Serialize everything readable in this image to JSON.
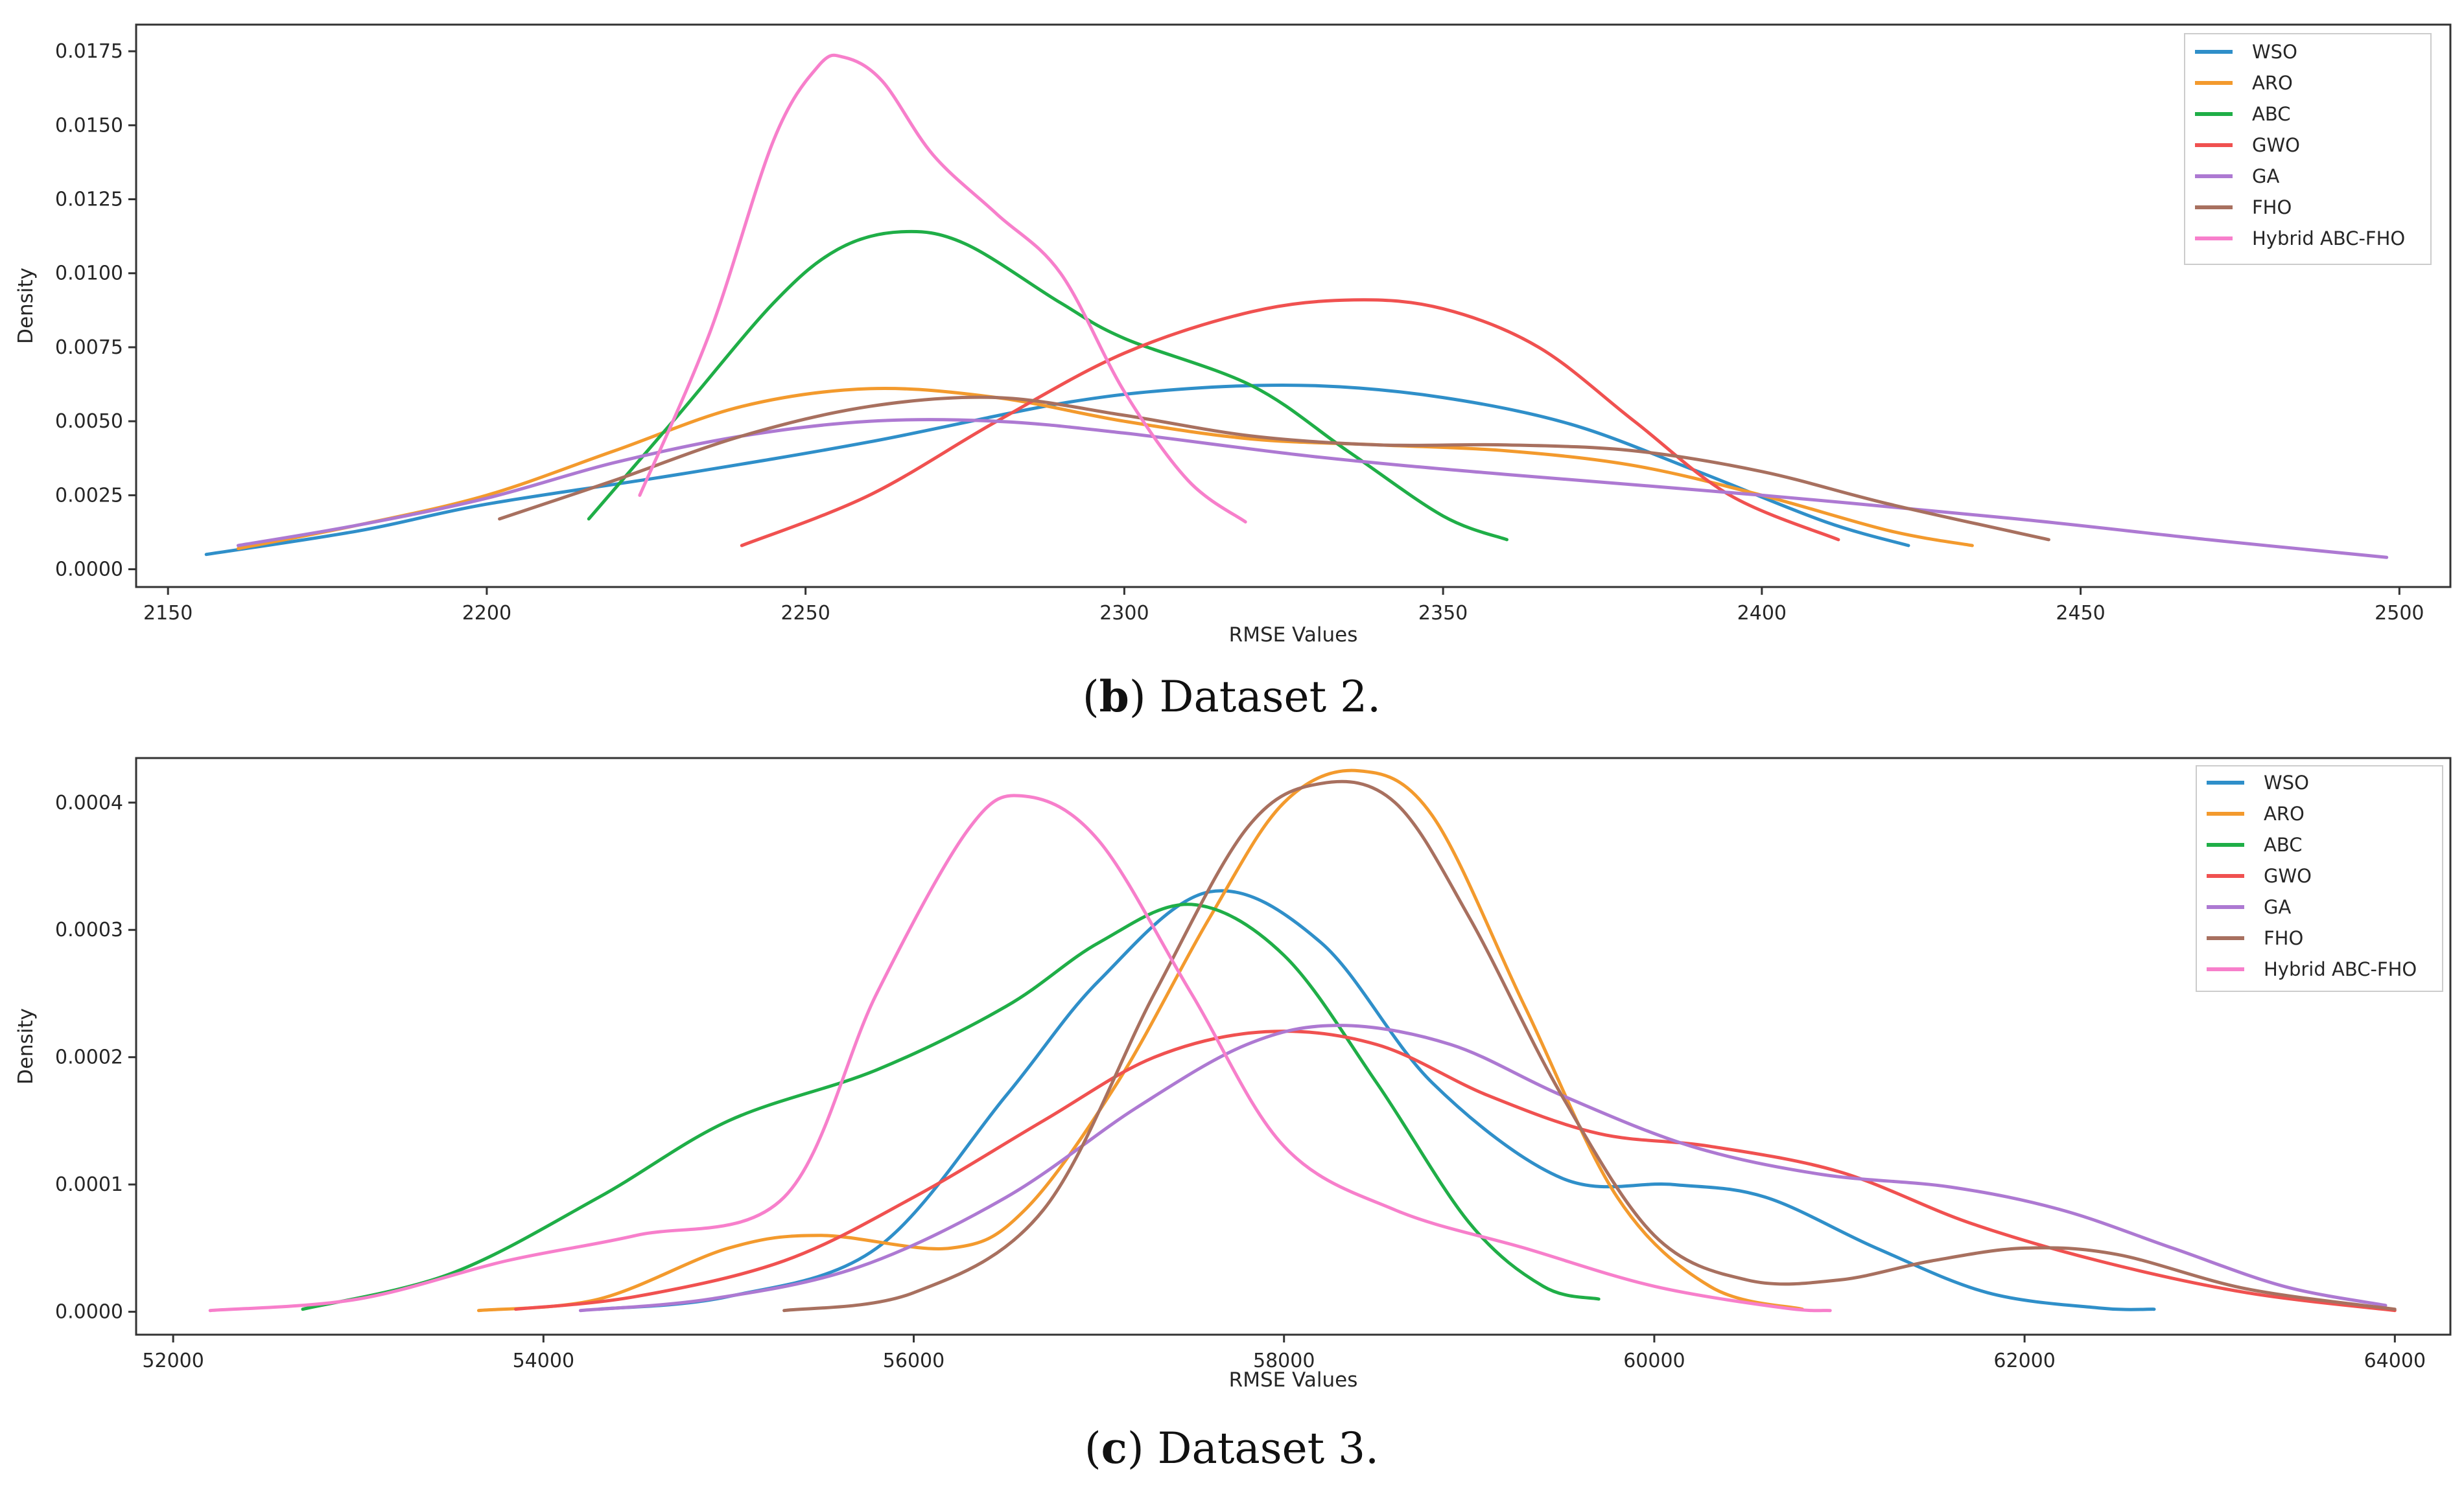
{
  "colors": {
    "WSO": "#2f8fc9",
    "ARO": "#f39a2d",
    "ABC": "#1fae47",
    "GWO": "#f05150",
    "GA": "#ad79d2",
    "FHO": "#a8705f",
    "Hybrid ABC-FHO": "#f77fcb"
  },
  "chart_data": [
    {
      "type": "line",
      "title": "",
      "caption": {
        "letter": "b",
        "text": "Dataset 2."
      },
      "xlabel": "RMSE Values",
      "ylabel": "Density",
      "xlim": [
        2145,
        2508
      ],
      "ylim": [
        -0.0006,
        0.0184
      ],
      "xticks": [
        "2150",
        "2200",
        "2250",
        "2300",
        "2350",
        "2400",
        "2450",
        "2500"
      ],
      "yticks": [
        "0.0000",
        "0.0025",
        "0.0050",
        "0.0075",
        "0.0100",
        "0.0125",
        "0.0150",
        "0.0175"
      ],
      "legend": {
        "position": "top-right",
        "entries": [
          "WSO",
          "ARO",
          "ABC",
          "GWO",
          "GA",
          "FHO",
          "Hybrid ABC-FHO"
        ]
      },
      "series": [
        {
          "name": "WSO",
          "x": [
            2156,
            2180,
            2200,
            2230,
            2260,
            2290,
            2310,
            2330,
            2350,
            2370,
            2390,
            2410,
            2423
          ],
          "y": [
            0.0005,
            0.0013,
            0.0022,
            0.0032,
            0.0043,
            0.0056,
            0.0061,
            0.0062,
            0.0058,
            0.0049,
            0.0033,
            0.0016,
            0.0008
          ]
        },
        {
          "name": "ARO",
          "x": [
            2161,
            2180,
            2200,
            2220,
            2240,
            2260,
            2280,
            2300,
            2320,
            2340,
            2360,
            2380,
            2400,
            2420,
            2433
          ],
          "y": [
            0.0007,
            0.0015,
            0.0025,
            0.004,
            0.0055,
            0.0061,
            0.0058,
            0.005,
            0.0044,
            0.0042,
            0.004,
            0.0035,
            0.0025,
            0.0013,
            0.0008
          ]
        },
        {
          "name": "ABC",
          "x": [
            2216,
            2230,
            2245,
            2255,
            2265,
            2275,
            2290,
            2300,
            2320,
            2335,
            2350,
            2360
          ],
          "y": [
            0.0017,
            0.0052,
            0.009,
            0.0108,
            0.0114,
            0.011,
            0.009,
            0.0078,
            0.0062,
            0.004,
            0.0018,
            0.001
          ]
        },
        {
          "name": "GWO",
          "x": [
            2240,
            2260,
            2280,
            2300,
            2320,
            2336,
            2350,
            2365,
            2380,
            2395,
            2412
          ],
          "y": [
            0.0008,
            0.0025,
            0.005,
            0.0073,
            0.0087,
            0.0091,
            0.0088,
            0.0075,
            0.005,
            0.0025,
            0.001
          ]
        },
        {
          "name": "GA",
          "x": [
            2161,
            2180,
            2200,
            2220,
            2240,
            2260,
            2280,
            2300,
            2330,
            2360,
            2400,
            2440,
            2470,
            2498
          ],
          "y": [
            0.0008,
            0.0015,
            0.0024,
            0.0036,
            0.0045,
            0.005,
            0.005,
            0.0046,
            0.0038,
            0.0032,
            0.0025,
            0.0017,
            0.001,
            0.0004
          ]
        },
        {
          "name": "FHO",
          "x": [
            2202,
            2220,
            2240,
            2260,
            2280,
            2300,
            2320,
            2340,
            2360,
            2380,
            2400,
            2420,
            2445
          ],
          "y": [
            0.0017,
            0.003,
            0.0045,
            0.0055,
            0.0058,
            0.0052,
            0.0045,
            0.0042,
            0.0042,
            0.004,
            0.0033,
            0.0022,
            0.001
          ]
        },
        {
          "name": "Hybrid ABC-FHO",
          "x": [
            2224,
            2235,
            2245,
            2252,
            2256,
            2262,
            2270,
            2280,
            2290,
            2300,
            2310,
            2319
          ],
          "y": [
            0.0025,
            0.008,
            0.0145,
            0.017,
            0.0173,
            0.0165,
            0.014,
            0.012,
            0.01,
            0.006,
            0.003,
            0.0016
          ]
        }
      ]
    },
    {
      "type": "line",
      "title": "",
      "caption": {
        "letter": "c",
        "text": "Dataset 3."
      },
      "xlabel": "RMSE Values",
      "ylabel": "Density",
      "xlim": [
        51800,
        64300
      ],
      "ylim": [
        -1.8e-05,
        0.000435
      ],
      "xticks": [
        "52000",
        "54000",
        "56000",
        "58000",
        "60000",
        "62000",
        "64000"
      ],
      "yticks": [
        "0.0000",
        "0.0001",
        "0.0002",
        "0.0003",
        "0.0004"
      ],
      "legend": {
        "position": "top-right",
        "entries": [
          "WSO",
          "ARO",
          "ABC",
          "GWO",
          "GA",
          "FHO",
          "Hybrid ABC-FHO"
        ]
      },
      "series": [
        {
          "name": "WSO",
          "x": [
            54300,
            55000,
            55800,
            56500,
            57000,
            57600,
            58200,
            58800,
            59500,
            60100,
            60600,
            61200,
            61800,
            62400,
            62700
          ],
          "y": [
            2e-06,
            1.2e-05,
            5e-05,
            0.00017,
            0.00026,
            0.00033,
            0.00029,
            0.00018,
            0.000105,
            0.0001,
            9e-05,
            5e-05,
            1.5e-05,
            3e-06,
            2e-06
          ]
        },
        {
          "name": "ARO",
          "x": [
            53650,
            54300,
            55000,
            55500,
            56200,
            56600,
            57100,
            57600,
            58000,
            58400,
            58800,
            59300,
            59800,
            60300,
            60800
          ],
          "y": [
            1e-06,
            1e-05,
            5e-05,
            6e-05,
            5e-05,
            8e-05,
            0.00018,
            0.00031,
            0.0004,
            0.000425,
            0.00039,
            0.00024,
            9e-05,
            2e-05,
            2e-06
          ]
        },
        {
          "name": "ABC",
          "x": [
            52700,
            53500,
            54300,
            55000,
            55800,
            56500,
            57000,
            57500,
            58000,
            58500,
            59000,
            59400,
            59700
          ],
          "y": [
            2e-06,
            3e-05,
            9e-05,
            0.00015,
            0.00019,
            0.00024,
            0.00029,
            0.00032,
            0.00028,
            0.00018,
            7e-05,
            2e-05,
            1e-05
          ]
        },
        {
          "name": "GWO",
          "x": [
            53850,
            54500,
            55300,
            56000,
            56700,
            57300,
            57900,
            58500,
            59100,
            59700,
            60300,
            61000,
            61700,
            62400,
            63200,
            64000
          ],
          "y": [
            2e-06,
            1.2e-05,
            4e-05,
            9e-05,
            0.00015,
            0.0002,
            0.00022,
            0.00021,
            0.00017,
            0.00014,
            0.00013,
            0.00011,
            7e-05,
            4e-05,
            1.5e-05,
            1e-06
          ]
        },
        {
          "name": "GA",
          "x": [
            54200,
            54900,
            55700,
            56500,
            57200,
            57800,
            58300,
            58900,
            59500,
            60200,
            60900,
            61600,
            62200,
            62800,
            63400,
            63950
          ],
          "y": [
            1e-06,
            1e-05,
            3.5e-05,
            9e-05,
            0.00016,
            0.00021,
            0.000225,
            0.00021,
            0.00017,
            0.00013,
            0.000108,
            9.8e-05,
            8e-05,
            5e-05,
            2e-05,
            5e-06
          ]
        },
        {
          "name": "FHO",
          "x": [
            55300,
            56000,
            56700,
            57300,
            57800,
            58200,
            58600,
            59000,
            59500,
            60000,
            60500,
            61000,
            61500,
            62000,
            62500,
            63200,
            64000
          ],
          "y": [
            1e-06,
            1.5e-05,
            8e-05,
            0.00025,
            0.00038,
            0.000415,
            0.0004,
            0.00031,
            0.00017,
            6e-05,
            2.5e-05,
            2.5e-05,
            4e-05,
            5e-05,
            4.5e-05,
            1.8e-05,
            2e-06
          ]
        },
        {
          "name": "Hybrid ABC-FHO",
          "x": [
            52200,
            53000,
            53800,
            54500,
            55300,
            55800,
            56300,
            56600,
            57000,
            57500,
            58000,
            58600,
            59300,
            60000,
            60700,
            60950
          ],
          "y": [
            1e-06,
            1e-05,
            4e-05,
            6e-05,
            9e-05,
            0.00025,
            0.00038,
            0.000405,
            0.00037,
            0.00025,
            0.00013,
            8e-05,
            5e-05,
            2e-05,
            3e-06,
            1e-06
          ]
        }
      ]
    }
  ]
}
